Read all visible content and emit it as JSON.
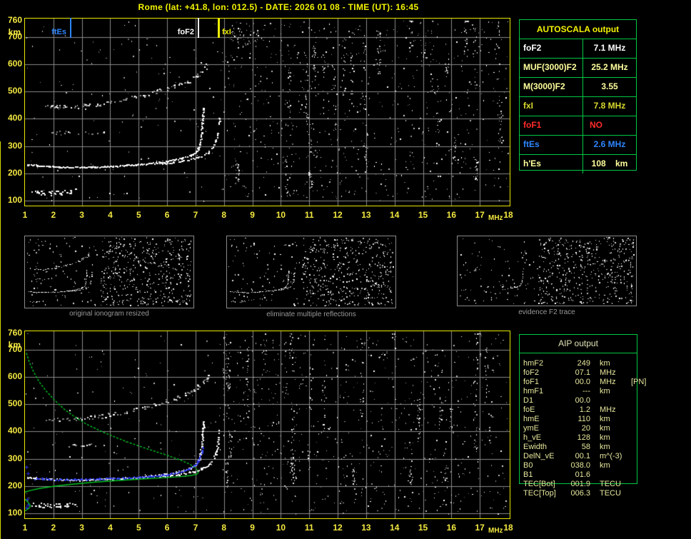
{
  "title": "Rome (lat: +41.8, lon: 012.5) - DATE: 2026 01 08 - TIME (UT): 16:45",
  "axis": {
    "y_unit": "km",
    "x_unit": "MHz",
    "y_ticks": [
      760,
      700,
      600,
      500,
      400,
      300,
      200,
      100
    ],
    "x_ticks": [
      1,
      2,
      3,
      4,
      5,
      6,
      7,
      8,
      9,
      10,
      11,
      12,
      13,
      14,
      15,
      16,
      17,
      18
    ]
  },
  "top_plot": {
    "markers": [
      {
        "label": "ftEs",
        "mhz": 2.6,
        "color": "#2E86FF",
        "side": "left"
      },
      {
        "label": "foF2",
        "mhz": 7.1,
        "color": "#FFFFFF",
        "side": "left"
      },
      {
        "label": "fxI",
        "mhz": 7.8,
        "color": "#EDED00",
        "side": "right"
      }
    ]
  },
  "autoscala_table": {
    "header": "AUTOSCALA output",
    "rows": [
      {
        "label": "foF2",
        "value": "7.1 MHz",
        "color": "#FFFFFF",
        "align": "center"
      },
      {
        "label": "MUF(3000)F2",
        "value": "25.2 MHz",
        "color": "#FFFF9C",
        "align": "center"
      },
      {
        "label": "M(3000)F2",
        "value": "3.55",
        "color": "#FFFF9C",
        "align": "center"
      },
      {
        "label": "fxI",
        "value": "7.8 MHz",
        "color": "#D9D92E",
        "align": "center"
      },
      {
        "label": "foF1",
        "value": "NO",
        "color": "#FF2A2A",
        "align": "left"
      },
      {
        "label": "ftEs",
        "value": "2.6 MHz",
        "color": "#2E86FF",
        "align": "center"
      },
      {
        "label": "h'Es",
        "value": "108    km",
        "color": "#FFFF9C",
        "align": "center"
      }
    ]
  },
  "thumbnails": [
    {
      "caption": "original ionogram resized"
    },
    {
      "caption": "eliminate multiple reflections"
    },
    {
      "caption": "evidence F2 trace"
    }
  ],
  "aip_table": {
    "header": "AIP output",
    "rows": [
      {
        "name": "hmF2",
        "value": "249",
        "unit": "km",
        "extra": ""
      },
      {
        "name": "foF2",
        "value": "07.1",
        "unit": "MHz",
        "extra": ""
      },
      {
        "name": "foF1",
        "value": "00.0",
        "unit": "MHz",
        "extra": "[PN]"
      },
      {
        "name": "hmF1",
        "value": "---",
        "unit": "km",
        "extra": ""
      },
      {
        "name": "D1",
        "value": "00.0",
        "unit": "",
        "extra": ""
      },
      {
        "name": "foE",
        "value": "1.2",
        "unit": "MHz",
        "extra": ""
      },
      {
        "name": "hmE",
        "value": "110",
        "unit": "km",
        "extra": ""
      },
      {
        "name": "ymE",
        "value": "20",
        "unit": "km",
        "extra": ""
      },
      {
        "name": "h_vE",
        "value": "128",
        "unit": "km",
        "extra": ""
      },
      {
        "name": "Ewidth",
        "value": "58",
        "unit": "km",
        "extra": ""
      },
      {
        "name": "DelN_vE",
        "value": "00.1",
        "unit": "m^(-3)",
        "extra": ""
      },
      {
        "name": "B0",
        "value": "038.0",
        "unit": "km",
        "extra": ""
      },
      {
        "name": "B1",
        "value": "01.6",
        "unit": "",
        "extra": ""
      },
      {
        "name": "TEC[Bot]",
        "value": "001.9",
        "unit": "TECU",
        "extra": ""
      },
      {
        "name": "TEC[Top]",
        "value": "006.3",
        "unit": "TECU",
        "extra": ""
      }
    ]
  },
  "chart_data": {
    "type": "ionogram",
    "x_unit": "MHz",
    "y_unit": "km",
    "x_range": [
      1,
      18
    ],
    "y_range": [
      100,
      760
    ],
    "scaled_values": {
      "foF2_MHz": 7.1,
      "MUF3000F2_MHz": 25.2,
      "M3000F2": 3.55,
      "fxI_MHz": 7.8,
      "foF1": "NO",
      "ftEs_MHz": 2.6,
      "hEs_km": 108,
      "hmF2_km": 249,
      "foE_MHz": 1.2
    },
    "traces": {
      "f2_ordinary": [
        [
          1.05,
          234
        ],
        [
          1.4,
          230
        ],
        [
          1.8,
          227
        ],
        [
          2.2,
          225
        ],
        [
          2.6,
          224
        ],
        [
          3.0,
          224
        ],
        [
          3.4,
          225
        ],
        [
          3.8,
          227
        ],
        [
          4.2,
          229
        ],
        [
          4.6,
          231
        ],
        [
          5.0,
          234
        ],
        [
          5.4,
          238
        ],
        [
          5.8,
          243
        ],
        [
          6.2,
          250
        ],
        [
          6.5,
          257
        ],
        [
          6.8,
          267
        ],
        [
          7.0,
          280
        ],
        [
          7.1,
          297
        ],
        [
          7.16,
          320
        ],
        [
          7.2,
          350
        ],
        [
          7.23,
          385
        ],
        [
          7.25,
          415
        ],
        [
          7.27,
          440
        ]
      ],
      "f2_extraordinary": [
        [
          5.7,
          236
        ],
        [
          6.1,
          240
        ],
        [
          6.5,
          246
        ],
        [
          6.9,
          254
        ],
        [
          7.2,
          264
        ],
        [
          7.45,
          278
        ],
        [
          7.6,
          296
        ],
        [
          7.7,
          320
        ],
        [
          7.76,
          350
        ],
        [
          7.8,
          385
        ],
        [
          7.82,
          415
        ]
      ],
      "second_hop": [
        [
          1.7,
          449
        ],
        [
          2.0,
          445
        ],
        [
          2.4,
          444
        ],
        [
          2.8,
          447
        ],
        [
          3.2,
          451
        ],
        [
          3.6,
          456
        ],
        [
          4.0,
          463
        ],
        [
          4.4,
          470
        ],
        [
          4.8,
          479
        ],
        [
          5.2,
          489
        ],
        [
          5.6,
          500
        ],
        [
          6.0,
          513
        ],
        [
          6.4,
          528
        ],
        [
          6.8,
          545
        ],
        [
          7.1,
          565
        ],
        [
          7.35,
          590
        ],
        [
          7.45,
          608
        ]
      ],
      "weak_intermediate": [
        [
          1.8,
          358
        ],
        [
          2.2,
          352
        ],
        [
          2.6,
          349
        ],
        [
          3.0,
          349
        ],
        [
          3.4,
          352
        ],
        [
          3.8,
          356
        ]
      ],
      "sporadic_e": [
        [
          1.3,
          134
        ],
        [
          1.6,
          131
        ],
        [
          1.9,
          129
        ],
        [
          2.2,
          130
        ],
        [
          2.5,
          133
        ],
        [
          2.75,
          137
        ]
      ]
    },
    "restored_trace_blue": [
      [
        1.35,
        229
      ],
      [
        1.8,
        227
      ],
      [
        2.4,
        226
      ],
      [
        3.0,
        226
      ],
      [
        3.6,
        228
      ],
      [
        4.2,
        230
      ],
      [
        4.8,
        233
      ],
      [
        5.3,
        236
      ],
      [
        5.8,
        241
      ],
      [
        6.2,
        248
      ],
      [
        6.5,
        255
      ],
      [
        6.75,
        264
      ],
      [
        6.95,
        277
      ],
      [
        7.08,
        293
      ],
      [
        7.17,
        312
      ],
      [
        7.22,
        330
      ],
      [
        7.25,
        342
      ]
    ],
    "blue_plus_marks": [
      [
        1.06,
        270
      ],
      [
        1.1,
        246
      ],
      [
        1.07,
        152
      ],
      [
        1.1,
        131
      ],
      [
        1.05,
        121
      ]
    ],
    "profile_green": {
      "topside": [
        [
          1.05,
          688
        ],
        [
          1.15,
          655
        ],
        [
          1.3,
          620
        ],
        [
          1.5,
          582
        ],
        [
          1.75,
          548
        ],
        [
          2.05,
          514
        ],
        [
          2.4,
          480
        ],
        [
          2.8,
          450
        ],
        [
          3.2,
          425
        ],
        [
          3.7,
          400
        ],
        [
          4.2,
          378
        ],
        [
          4.7,
          358
        ],
        [
          5.2,
          340
        ],
        [
          5.7,
          323
        ],
        [
          6.1,
          309
        ],
        [
          6.5,
          294
        ],
        [
          6.8,
          280
        ],
        [
          7.0,
          266
        ],
        [
          7.08,
          256
        ],
        [
          7.1,
          250
        ]
      ],
      "bottomside": [
        [
          7.1,
          250
        ],
        [
          7.04,
          243
        ],
        [
          6.8,
          238
        ],
        [
          6.4,
          234
        ],
        [
          5.8,
          230
        ],
        [
          5.0,
          225
        ],
        [
          4.2,
          220
        ],
        [
          3.4,
          214
        ],
        [
          2.6,
          206
        ],
        [
          2.0,
          199
        ],
        [
          1.5,
          191
        ],
        [
          1.2,
          184
        ],
        [
          1.0,
          178
        ]
      ],
      "e_region": [
        [
          1.0,
          152
        ],
        [
          1.08,
          143
        ],
        [
          1.15,
          135
        ],
        [
          1.19,
          128
        ],
        [
          1.16,
          121
        ],
        [
          1.08,
          114
        ],
        [
          1.0,
          109
        ]
      ]
    }
  }
}
